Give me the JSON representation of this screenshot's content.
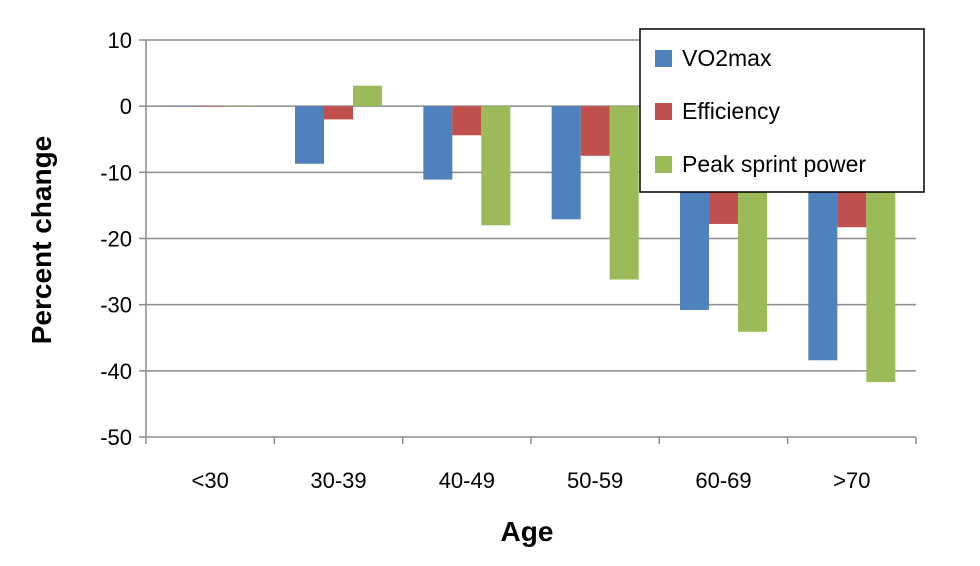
{
  "chart_data": {
    "type": "bar",
    "categories": [
      "<30",
      "30-39",
      "40-49",
      "50-59",
      "60-69",
      ">70"
    ],
    "series": [
      {
        "name": "VO2max",
        "color": "#4f81bd",
        "values": [
          0,
          -8.7,
          -11.1,
          -17.1,
          -30.8,
          -38.4
        ]
      },
      {
        "name": "Efficiency",
        "color": "#c0504d",
        "values": [
          0,
          -2.0,
          -4.4,
          -7.5,
          -17.8,
          -18.3
        ]
      },
      {
        "name": "Peak sprint power",
        "color": "#9bbb59",
        "values": [
          0,
          3.1,
          -18.0,
          -26.2,
          -34.1,
          -41.7
        ]
      }
    ],
    "title": "",
    "xlabel": "Age",
    "ylabel": "Percent change",
    "ylim": [
      -50,
      10
    ],
    "yticks": [
      10,
      0,
      -10,
      -20,
      -30,
      -40,
      -50
    ],
    "grid": true,
    "legend_position": "top-right"
  }
}
